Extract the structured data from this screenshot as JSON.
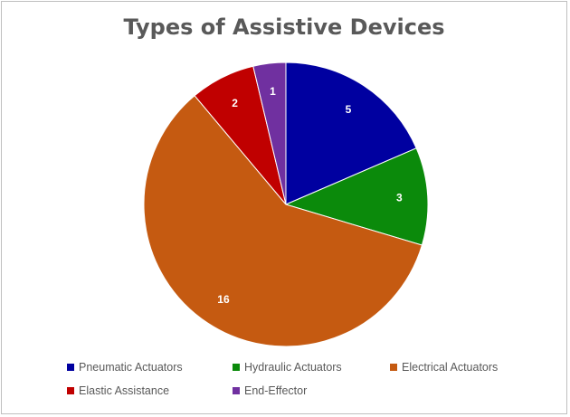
{
  "chart_data": {
    "type": "pie",
    "title": "Types of Assistive Devices",
    "categories": [
      "Pneumatic Actuators",
      "Hydraulic Actuators",
      "Electrical Actuators",
      "Elastic Assistance",
      "End-Effector"
    ],
    "values": [
      5,
      3,
      16,
      2,
      1
    ],
    "colors": [
      "#0000a0",
      "#0b8a0b",
      "#c55a11",
      "#c00000",
      "#7030a0"
    ],
    "data_labels": [
      "5",
      "3",
      "16",
      "2",
      "1"
    ],
    "label_color": "#ffffff",
    "legend_placement": "bottom",
    "start_angle": "top, clockwise"
  }
}
